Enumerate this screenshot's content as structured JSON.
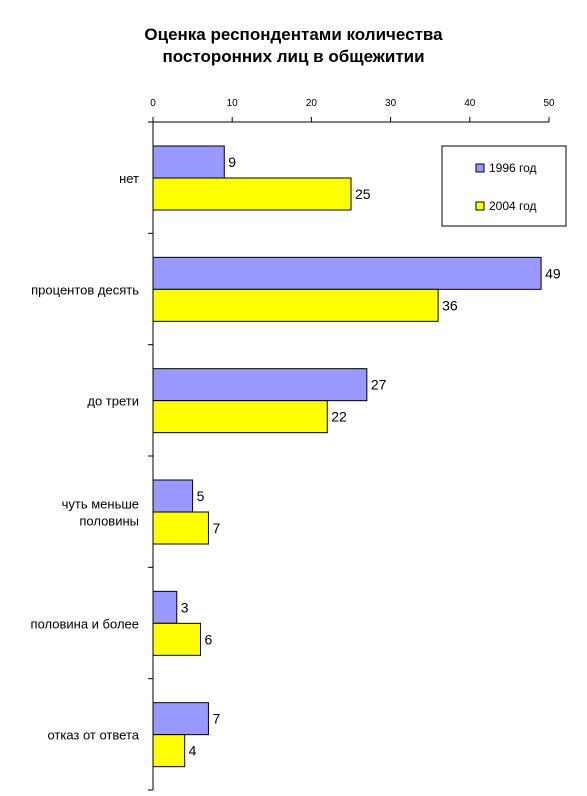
{
  "chart_data": {
    "type": "bar",
    "orientation": "horizontal",
    "title_lines": [
      "Оценка респондентами количества",
      "посторонних лиц в общежитии"
    ],
    "categories": [
      "нет",
      "процентов десять",
      "до трети",
      "чуть меньше половины",
      "половина и более",
      "отказ от ответа"
    ],
    "category_label_lines": [
      [
        "нет"
      ],
      [
        "процентов десять"
      ],
      [
        "до трети"
      ],
      [
        "чуть меньше",
        "половины"
      ],
      [
        "половина и более"
      ],
      [
        "отказ от ответа"
      ]
    ],
    "series": [
      {
        "name": "1996 год",
        "color": "#9999ff",
        "values": [
          9,
          49,
          27,
          5,
          3,
          7
        ]
      },
      {
        "name": "2004 год",
        "color": "#ffff00",
        "values": [
          25,
          36,
          22,
          7,
          6,
          4
        ]
      }
    ],
    "xlim": [
      0,
      50
    ],
    "xticks": [
      0,
      10,
      20,
      30,
      40,
      50
    ],
    "x_axis_position": "top",
    "grid": false,
    "legend_position": "top-right"
  }
}
